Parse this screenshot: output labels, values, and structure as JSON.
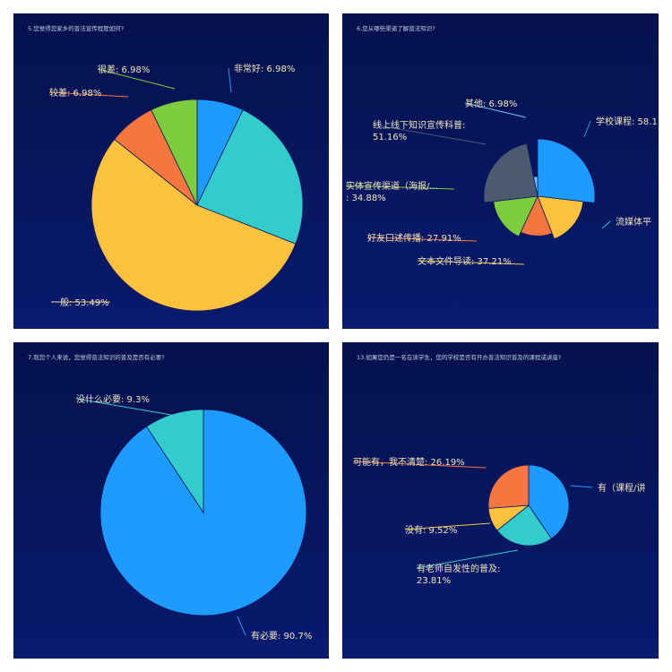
{
  "chart_data": [
    {
      "type": "pie",
      "title": "5.您觉得您家乡的普法宣传程度如何?",
      "series": [
        {
          "values": [
            {
              "label": "非常好",
              "value": 6.98,
              "color": "#1e9bff",
              "text": "非常好: 6.98%"
            },
            {
              "label": "",
              "value": 23.26,
              "color": "#33cccc",
              "text": ""
            },
            {
              "label": "一般",
              "value": 53.49,
              "color": "#fcc23d",
              "text": "一般: 53.49%"
            },
            {
              "label": "较差",
              "value": 6.98,
              "color": "#f5763f",
              "text": "较差: 6.98%"
            },
            {
              "label": "很差",
              "value": 6.98,
              "color": "#7dcc3c",
              "text": "很差: 6.98%"
            }
          ]
        }
      ]
    },
    {
      "type": "pie",
      "title": "6.您从哪些渠道了解普法知识?",
      "series": [
        {
          "values": [
            {
              "label": "学校课程",
              "value": 58.1,
              "color": "#1e9bff",
              "text": "学校课程: 58.1"
            },
            {
              "label": "流媒体平",
              "value": 0,
              "color": "#33cccc",
              "text": "流媒体平"
            },
            {
              "label": "文本文件导读",
              "value": 37.21,
              "color": "#fcc23d",
              "text": "文本文件导读: 37.21%"
            },
            {
              "label": "好友口述传播",
              "value": 27.91,
              "color": "#f5763f",
              "text": "好友口述传播: 27.91%"
            },
            {
              "label": "实体宣传渠道（海报/...",
              "value": 34.88,
              "color": "#7dcc3c",
              "text": "实体宣传渠道（海报/...|: 34.88%"
            },
            {
              "label": "线上线下知识宣传科普",
              "value": 51.16,
              "color": "#4b5a6e",
              "text": "线上线下知识宣传科普:|51.16%"
            },
            {
              "label": "其他",
              "value": 6.98,
              "color": "#6ec6ff",
              "text": "其他: 6.98%"
            }
          ]
        }
      ]
    },
    {
      "type": "pie",
      "title": "7.就您个人来说，您觉得普法知识的普及是否有必要?",
      "series": [
        {
          "values": [
            {
              "label": "有必要",
              "value": 90.7,
              "color": "#1e9bff",
              "text": "有必要: 90.7%"
            },
            {
              "label": "没什么必要",
              "value": 9.3,
              "color": "#33cccc",
              "text": "没什么必要: 9.3%"
            }
          ]
        }
      ]
    },
    {
      "type": "pie",
      "title": "13.如果您仍是一名在读学生，您的学校是否有开办普法知识普及的课程或讲座?",
      "series": [
        {
          "values": [
            {
              "label": "有（课程/讲",
              "value": 40.48,
              "color": "#1e9bff",
              "text": "有（课程/讲"
            },
            {
              "label": "有老师自发性的普及",
              "value": 23.81,
              "color": "#33cccc",
              "text": "有老师自发性的普及:|23.81%"
            },
            {
              "label": "没有",
              "value": 9.52,
              "color": "#fcc23d",
              "text": "没有: 9.52%"
            },
            {
              "label": "可能有，我不清楚",
              "value": 26.19,
              "color": "#f5763f",
              "text": "可能有，我不清楚: 26.19%"
            }
          ]
        }
      ]
    }
  ]
}
